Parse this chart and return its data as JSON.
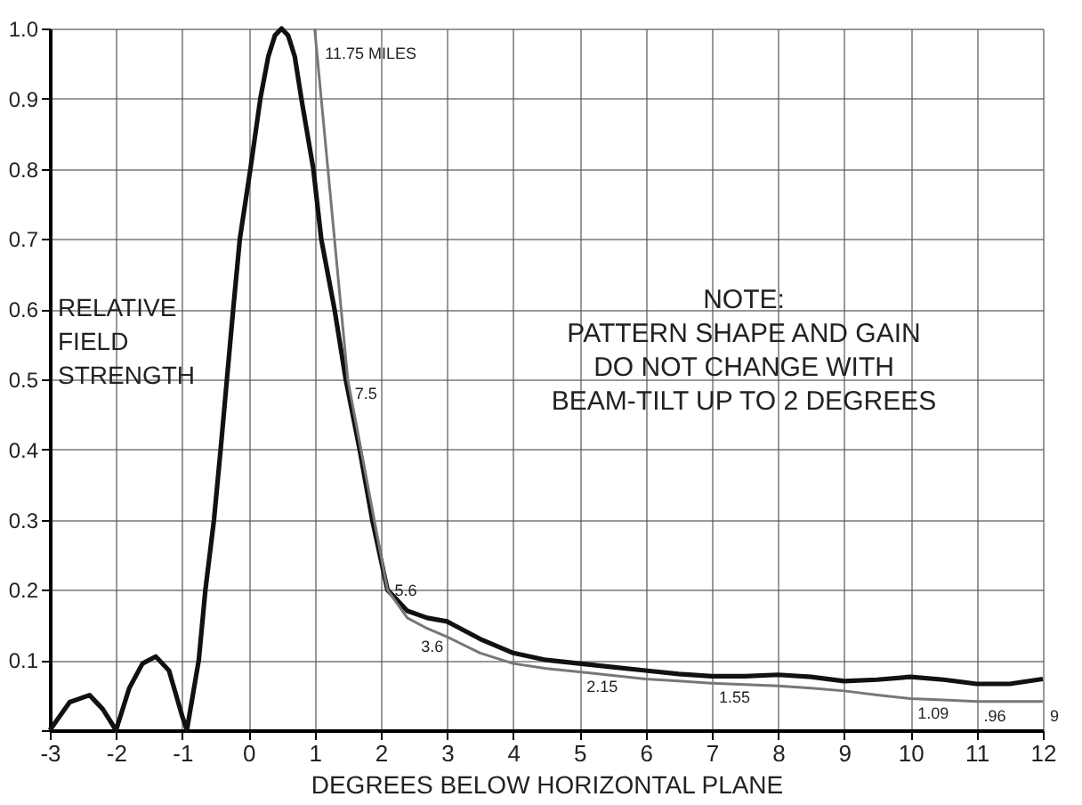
{
  "chart_data": {
    "type": "line",
    "xlabel": "DEGREES BELOW HORIZONTAL PLANE",
    "ylabel": "RELATIVE FIELD STRENGTH",
    "xlim": [
      -3,
      12
    ],
    "ylim": [
      0,
      1
    ],
    "xticks": [
      -3,
      -2,
      -1,
      0,
      1,
      2,
      3,
      4,
      5,
      6,
      7,
      8,
      9,
      10,
      11,
      12
    ],
    "yticks": [
      {
        "value": 0,
        "label": null
      },
      0.1,
      0.2,
      0.3,
      0.4,
      0.5,
      0.6,
      0.7,
      0.8,
      0.9,
      {
        "value": 1,
        "label": "1.0"
      }
    ],
    "grid": true,
    "marker": "none",
    "line_style": "solid",
    "series": [
      {
        "color": "#111111",
        "x": [
          -3,
          -2.7,
          -2.4,
          -2.2,
          -2,
          -1.8,
          -1.6,
          -1.4,
          -1.2,
          -1,
          -0.93,
          -0.75,
          -0.65,
          -0.52,
          -0.42,
          -0.23,
          -0.13,
          0.03,
          0.18,
          0.3,
          0.4,
          0.5,
          0.6,
          0.7,
          0.8,
          0.98,
          1.1,
          1.3,
          1.47,
          1.68,
          1.87,
          2.1,
          2.4,
          2.7,
          3,
          3.5,
          4,
          4.5,
          5,
          5.5,
          6,
          6.5,
          7,
          7.5,
          8,
          8.5,
          9,
          9.5,
          10,
          10.5,
          11,
          11.5,
          12
        ],
        "values": [
          0,
          0.04,
          0.05,
          0.03,
          0,
          0.06,
          0.095,
          0.105,
          0.085,
          0.02,
          0,
          0.1,
          0.2,
          0.3,
          0.4,
          0.6,
          0.7,
          0.8,
          0.9,
          0.96,
          0.99,
          1,
          0.99,
          0.96,
          0.9,
          0.8,
          0.7,
          0.6,
          0.5,
          0.4,
          0.3,
          0.2,
          0.17,
          0.16,
          0.155,
          0.13,
          0.11,
          0.1,
          0.095,
          0.09,
          0.085,
          0.08,
          0.077,
          0.077,
          0.079,
          0.076,
          0.07,
          0.072,
          0.076,
          0.072,
          0.066,
          0.066,
          0.073
        ]
      },
      {
        "color": "#777777",
        "x": [
          1,
          1.1,
          1.2,
          1.35,
          1.5,
          1.7,
          1.9,
          2.1,
          2.4,
          2.7,
          3,
          3.5,
          4,
          4.5,
          5,
          5.5,
          6,
          6.5,
          7,
          7.5,
          8,
          8.5,
          9,
          9.5,
          10,
          10.5,
          11,
          11.5,
          12
        ],
        "values": [
          1,
          0.9,
          0.8,
          0.65,
          0.5,
          0.4,
          0.3,
          0.2,
          0.16,
          0.145,
          0.133,
          0.11,
          0.095,
          0.088,
          0.083,
          0.078,
          0.073,
          0.07,
          0.067,
          0.065,
          0.063,
          0.06,
          0.056,
          0.05,
          0.045,
          0.043,
          0.041,
          0.041,
          0.041
        ]
      }
    ],
    "annotations": [
      {
        "text": "11.75 MILES",
        "x": 1.05,
        "y": 0.985
      },
      {
        "text": "7.5",
        "x": 1.5,
        "y": 0.5
      },
      {
        "text": "5.6",
        "x": 2.1,
        "y": 0.22
      },
      {
        "text": "3.6",
        "x": 2.5,
        "y": 0.14
      },
      {
        "text": "2.15",
        "x": 5,
        "y": 0.083
      },
      {
        "text": "1.55",
        "x": 7,
        "y": 0.067
      },
      {
        "text": "1.09",
        "x": 10,
        "y": 0.045
      },
      {
        "text": ".96",
        "x": 11,
        "y": 0.041
      },
      {
        "text": "9",
        "x": 12,
        "y": 0.041
      },
      "NOTE:\nPATTERN SHAPE AND GAIN\nDO NOT CHANGE WITH\nBEAM-TILT UP TO 2 DEGREES"
    ]
  }
}
